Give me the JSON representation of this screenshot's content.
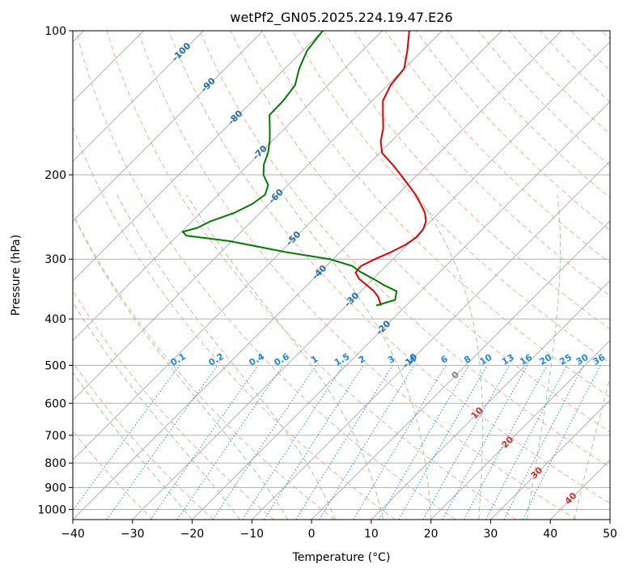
{
  "chart_data": {
    "type": "skew-t",
    "title": "wetPf2_GN05.2025.224.19.47.E26",
    "xlabel": "Temperature (°C)",
    "ylabel": "Pressure (hPa)",
    "xlim": [
      -40,
      50
    ],
    "ylim_hPa": [
      1050,
      100
    ],
    "y_scale": "log",
    "grid": true,
    "x_ticks": [
      -40,
      -30,
      -20,
      -10,
      0,
      10,
      20,
      30,
      40,
      50
    ],
    "x_tick_labels": [
      "−40",
      "−30",
      "−20",
      "−10",
      "0",
      "10",
      "20",
      "30",
      "40",
      "50"
    ],
    "y_ticks": [
      100,
      200,
      300,
      400,
      500,
      600,
      700,
      800,
      900,
      1000
    ],
    "y_tick_labels": [
      "100",
      "200",
      "300",
      "400",
      "500",
      "600",
      "700",
      "800",
      "900",
      "1000"
    ],
    "series": [
      {
        "color": "#e00000",
        "pressure": [
          100,
          110,
          120,
          130,
          140,
          150,
          160,
          170,
          180,
          190,
          200,
          210,
          220,
          230,
          240,
          250,
          260,
          270,
          280,
          290,
          300,
          310,
          320,
          330,
          340,
          350,
          360,
          375
        ],
        "temperature": [
          -65.5,
          -62.5,
          -60.0,
          -59.5,
          -58.2,
          -55.8,
          -53.5,
          -51.8,
          -49.6,
          -46.0,
          -42.8,
          -39.8,
          -37.0,
          -34.6,
          -32.4,
          -30.8,
          -29.9,
          -29.7,
          -30.3,
          -31.5,
          -33.0,
          -34.2,
          -34.0,
          -32.3,
          -30.0,
          -27.8,
          -26.1,
          -24.2
        ]
      },
      {
        "color": "#007b00",
        "pressure": [
          100,
          110,
          120,
          130,
          140,
          150,
          160,
          170,
          180,
          190,
          200,
          210,
          220,
          230,
          240,
          250,
          258,
          263,
          268,
          275,
          290,
          300,
          310,
          320,
          330,
          340,
          350,
          365,
          375
        ],
        "dewpoint": [
          -80.0,
          -79.3,
          -77.6,
          -75.5,
          -74.9,
          -74.8,
          -72.5,
          -70.4,
          -68.7,
          -67.5,
          -65.8,
          -63.3,
          -62.2,
          -62.8,
          -64.3,
          -66.9,
          -68.0,
          -69.8,
          -68.5,
          -60.4,
          -49.1,
          -40.6,
          -35.7,
          -33.0,
          -29.9,
          -27.1,
          -24.0,
          -22.8,
          -25.0
        ]
      }
    ],
    "temperature_labels": [
      "-100",
      "-90",
      "-80",
      "-70",
      "-60",
      "-50",
      "-40",
      "-30",
      "-20",
      "-10",
      "0",
      "10",
      "20",
      "30",
      "40"
    ],
    "mixing_ratio_labels": [
      "0.1",
      "0.2",
      "0.4",
      "0.6",
      "1",
      "1.5",
      "2",
      "3",
      "4",
      "6",
      "8",
      "10",
      "13",
      "16",
      "20",
      "25",
      "30",
      "36"
    ],
    "colors": {
      "temperature": "#e00000",
      "dewpoint": "#007b00",
      "isotherm": "#b0b0b0",
      "dry_adiabat": "#f5a083",
      "moist_adiabat": "#90c890",
      "mixing_ratio": "#1f88e5",
      "grid": "#b0b0b0",
      "cold_label": "#1f6fa8",
      "warm_label": "#d03030"
    }
  }
}
